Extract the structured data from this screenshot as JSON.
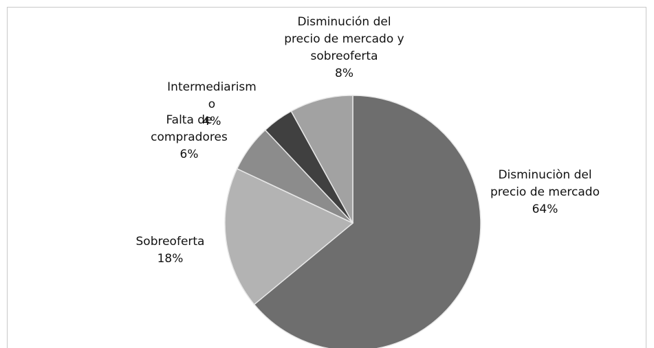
{
  "chart_data": {
    "type": "pie",
    "categories": [
      "Disminuciòn del precio de mercado",
      "Sobreoferta",
      "Falta de compradores",
      "Intermediarismo",
      "Disminución del precio de mercado y sobreoferta"
    ],
    "values": [
      64,
      18,
      6,
      4,
      8
    ],
    "value_labels": [
      "64%",
      "18%",
      "6%",
      "4%",
      "8%"
    ],
    "colors": [
      "#6e6e6e",
      "#b3b3b3",
      "#8c8c8c",
      "#404040",
      "#a2a2a2"
    ]
  }
}
